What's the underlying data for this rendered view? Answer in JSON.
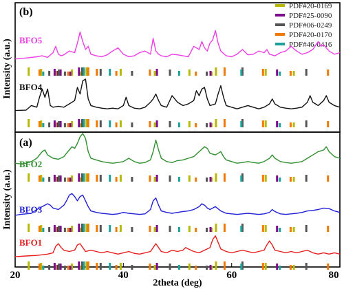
{
  "chart_data": [
    {
      "panel": "(b)",
      "type": "line",
      "xlabel": "",
      "ylabel": "Intensity (a.u.)",
      "xlim": [
        20,
        80
      ],
      "grid": false,
      "series": [
        {
          "name": "BFO5",
          "color": "#ee3ee6",
          "x": [
            20,
            22,
            24,
            25,
            26,
            27,
            27.5,
            28,
            28.5,
            29,
            30,
            31,
            31.5,
            32,
            32.5,
            33,
            33.5,
            34,
            35,
            36,
            37,
            38,
            39,
            40,
            41,
            42,
            43,
            44,
            45,
            45.5,
            46,
            46.5,
            47,
            48,
            49,
            50,
            51,
            52,
            53,
            54,
            54.5,
            55,
            55.5,
            56,
            56.5,
            57,
            57.5,
            58,
            59,
            60,
            61,
            62,
            63,
            64,
            65,
            66,
            66.5,
            67,
            68,
            69,
            70,
            71,
            72,
            73,
            74,
            75,
            76,
            76.5,
            77,
            78,
            79,
            80
          ],
          "y": [
            0.05,
            0.08,
            0.12,
            0.15,
            0.1,
            0.25,
            0.45,
            0.2,
            0.15,
            0.18,
            0.3,
            0.25,
            0.55,
            0.9,
            0.6,
            0.35,
            0.45,
            0.2,
            0.15,
            0.12,
            0.18,
            0.3,
            0.4,
            0.2,
            0.12,
            0.15,
            0.25,
            0.3,
            0.2,
            0.7,
            0.3,
            0.2,
            0.15,
            0.12,
            0.2,
            0.18,
            0.15,
            0.12,
            0.45,
            0.35,
            0.6,
            0.4,
            0.3,
            0.55,
            0.65,
            0.95,
            0.55,
            0.3,
            0.15,
            0.12,
            0.2,
            0.35,
            0.18,
            0.2,
            0.3,
            0.25,
            0.35,
            0.2,
            0.15,
            0.25,
            0.3,
            0.45,
            0.3,
            0.2,
            0.25,
            0.35,
            0.6,
            0.45,
            0.5,
            0.3,
            0.2,
            0.25
          ]
        },
        {
          "name": "BFO4",
          "color": "#111111",
          "x": [
            20,
            22,
            23,
            24,
            24.5,
            25,
            25.5,
            26,
            26.5,
            27,
            28,
            29,
            30,
            31,
            31.5,
            32,
            32.5,
            33,
            33.5,
            34,
            35,
            36,
            37,
            38,
            39,
            40,
            40.5,
            41,
            42,
            43,
            44,
            45,
            45.5,
            46,
            46.5,
            47,
            48,
            49,
            50,
            51,
            52,
            53,
            53.5,
            54,
            54.5,
            55,
            55.5,
            56,
            57,
            57.5,
            58,
            58.5,
            59,
            60,
            61,
            62,
            63,
            64,
            65,
            66,
            67,
            67.5,
            68,
            69,
            70,
            71,
            72,
            73,
            74,
            74.5,
            75,
            76,
            77,
            77.5,
            78,
            79,
            80
          ],
          "y": [
            0.05,
            0.06,
            0.2,
            0.15,
            0.45,
            0.7,
            0.45,
            0.7,
            0.2,
            0.15,
            0.18,
            0.15,
            0.25,
            0.35,
            0.75,
            0.55,
            0.95,
            1.0,
            0.4,
            0.2,
            0.15,
            0.12,
            0.1,
            0.12,
            0.1,
            0.2,
            0.45,
            0.2,
            0.12,
            0.1,
            0.15,
            0.3,
            0.4,
            0.55,
            0.35,
            0.2,
            0.15,
            0.5,
            0.3,
            0.2,
            0.25,
            0.35,
            0.65,
            0.5,
            0.7,
            0.75,
            0.4,
            0.2,
            0.25,
            0.55,
            0.8,
            0.45,
            0.2,
            0.15,
            0.1,
            0.15,
            0.2,
            0.15,
            0.1,
            0.15,
            0.25,
            0.4,
            0.25,
            0.15,
            0.12,
            0.1,
            0.12,
            0.15,
            0.3,
            0.5,
            0.3,
            0.2,
            0.35,
            0.5,
            0.3,
            0.2,
            0.15
          ]
        }
      ]
    },
    {
      "panel": "(a)",
      "type": "line",
      "xlabel": "2theta (deg)",
      "ylabel": "Intensity (a.u.)",
      "xlim": [
        20,
        80
      ],
      "xticks": [
        20,
        40,
        60,
        80
      ],
      "grid": false,
      "series": [
        {
          "name": "BFO2",
          "color": "#2f8f2f",
          "x": [
            20,
            21,
            22,
            23,
            24,
            25,
            25.5,
            26,
            27,
            28,
            29,
            30,
            30.5,
            31,
            31.5,
            32,
            32.5,
            33,
            33.5,
            34,
            35,
            36,
            37,
            38,
            39,
            40,
            41,
            42,
            43,
            44,
            45,
            45.5,
            46,
            46.5,
            47,
            48,
            49,
            50,
            51,
            52,
            53,
            54,
            55,
            55.5,
            56,
            57,
            57.5,
            58,
            58.5,
            59,
            60,
            61,
            62,
            63,
            64,
            65,
            66,
            67,
            67.5,
            68,
            69,
            70,
            71,
            72,
            73,
            74,
            75,
            76,
            77,
            77.5,
            78,
            79,
            80
          ],
          "y": [
            0.1,
            0.08,
            0.1,
            0.15,
            0.25,
            0.45,
            0.5,
            0.35,
            0.25,
            0.22,
            0.3,
            0.5,
            0.6,
            0.55,
            0.7,
            0.9,
            1.0,
            0.85,
            0.45,
            0.25,
            0.2,
            0.15,
            0.12,
            0.1,
            0.12,
            0.15,
            0.25,
            0.15,
            0.1,
            0.12,
            0.2,
            0.45,
            0.8,
            0.5,
            0.25,
            0.15,
            0.12,
            0.18,
            0.2,
            0.25,
            0.3,
            0.45,
            0.6,
            0.55,
            0.4,
            0.35,
            0.4,
            0.45,
            0.3,
            0.2,
            0.15,
            0.1,
            0.12,
            0.15,
            0.12,
            0.1,
            0.15,
            0.25,
            0.35,
            0.25,
            0.15,
            0.12,
            0.1,
            0.12,
            0.15,
            0.25,
            0.35,
            0.45,
            0.5,
            0.6,
            0.45,
            0.3,
            0.25
          ]
        },
        {
          "name": "BFO3",
          "color": "#2020d8",
          "x": [
            20,
            21,
            22,
            23,
            24,
            25,
            26,
            26.5,
            27,
            28,
            29,
            29.5,
            30,
            30.5,
            31,
            31.5,
            32,
            32.5,
            33,
            33.5,
            34,
            35,
            36,
            37,
            38,
            39,
            40,
            41,
            42,
            43,
            44,
            45,
            45.5,
            46,
            46.5,
            47,
            48,
            49,
            50,
            51,
            52,
            53,
            54,
            54.5,
            55,
            55.5,
            56,
            56.5,
            57,
            58,
            59,
            60,
            61,
            62,
            63,
            64,
            65,
            66,
            67,
            67.5,
            68,
            69,
            70,
            71,
            72,
            73,
            74,
            75,
            76,
            77,
            78,
            79,
            80
          ],
          "y": [
            0.05,
            0.08,
            0.1,
            0.12,
            0.25,
            0.35,
            0.45,
            0.4,
            0.3,
            0.25,
            0.4,
            0.55,
            0.75,
            0.8,
            0.7,
            0.55,
            0.7,
            0.75,
            0.55,
            0.35,
            0.2,
            0.15,
            0.12,
            0.1,
            0.08,
            0.1,
            0.15,
            0.12,
            0.1,
            0.08,
            0.1,
            0.25,
            0.55,
            0.65,
            0.4,
            0.2,
            0.15,
            0.12,
            0.15,
            0.18,
            0.2,
            0.25,
            0.35,
            0.45,
            0.4,
            0.3,
            0.25,
            0.3,
            0.35,
            0.2,
            0.12,
            0.1,
            0.08,
            0.1,
            0.12,
            0.1,
            0.08,
            0.1,
            0.15,
            0.25,
            0.18,
            0.1,
            0.08,
            0.1,
            0.12,
            0.15,
            0.2,
            0.22,
            0.25,
            0.3,
            0.28,
            0.2,
            0.15
          ]
        },
        {
          "name": "BFO1",
          "color": "#e81e1e",
          "x": [
            20,
            22,
            24,
            26,
            27,
            27.5,
            28,
            28.5,
            29,
            30,
            31,
            31.5,
            32,
            32.5,
            33,
            34,
            35,
            36,
            37,
            38,
            39,
            40,
            41,
            42,
            43,
            44,
            45,
            45.5,
            46,
            46.5,
            47,
            48,
            49,
            50,
            51,
            51.5,
            52,
            53,
            54,
            55,
            56,
            56.5,
            57,
            57.5,
            58,
            59,
            60,
            61,
            62,
            63,
            64,
            65,
            66,
            66.5,
            67,
            67.5,
            68,
            69,
            70,
            71,
            72,
            73,
            74,
            75,
            76,
            77,
            78,
            79,
            80
          ],
          "y": [
            0.05,
            0.08,
            0.1,
            0.15,
            0.2,
            0.45,
            0.55,
            0.4,
            0.3,
            0.25,
            0.3,
            0.5,
            0.55,
            0.4,
            0.25,
            0.3,
            0.25,
            0.2,
            0.25,
            0.2,
            0.15,
            0.2,
            0.25,
            0.18,
            0.15,
            0.2,
            0.25,
            0.4,
            0.55,
            0.4,
            0.25,
            0.2,
            0.3,
            0.25,
            0.3,
            0.4,
            0.35,
            0.25,
            0.2,
            0.3,
            0.4,
            0.7,
            0.85,
            0.6,
            0.35,
            0.25,
            0.2,
            0.25,
            0.3,
            0.25,
            0.2,
            0.25,
            0.3,
            0.5,
            0.65,
            0.5,
            0.3,
            0.25,
            0.2,
            0.25,
            0.2,
            0.25,
            0.3,
            0.2,
            0.15,
            0.2,
            0.15,
            0.2,
            0.15
          ]
        }
      ]
    }
  ],
  "legend": {
    "placement": "top-right",
    "entries": [
      {
        "label": "PDF#20-0169",
        "color": "#b8b800"
      },
      {
        "label": "PDF#25-0090",
        "color": "#7d0a8c"
      },
      {
        "label": "PDF#06-0249",
        "color": "#555555"
      },
      {
        "label": "PDF#20-0170",
        "color": "#f07800"
      },
      {
        "label": "PDF#46-0416",
        "color": "#1aa29a"
      }
    ]
  },
  "reference_marks": {
    "PDF#20-0169": [
      22.5,
      24.8,
      27.6,
      30.5,
      32.1,
      33.2,
      39.5,
      45.8,
      52.2,
      56.3,
      57.1,
      66.3,
      71.5
    ],
    "PDF#25-0090": [
      27.3,
      27.9,
      28.4,
      30.2,
      31.8,
      46.2,
      56.1,
      68.4
    ],
    "PDF#06-0249": [
      26.3,
      28.1,
      29.2,
      32.4,
      35.8,
      41.6,
      48.6,
      55.4,
      62.0,
      73.8
    ],
    "PDF#20-0170": [
      24.5,
      29.8,
      33.5,
      35.1,
      38.7,
      44.9,
      53.4,
      58.7,
      65.8,
      70.9,
      77.8
    ],
    "PDF#46-0416": [
      25.2,
      32.7,
      37.5,
      50.3,
      61.8,
      68.9
    ]
  }
}
